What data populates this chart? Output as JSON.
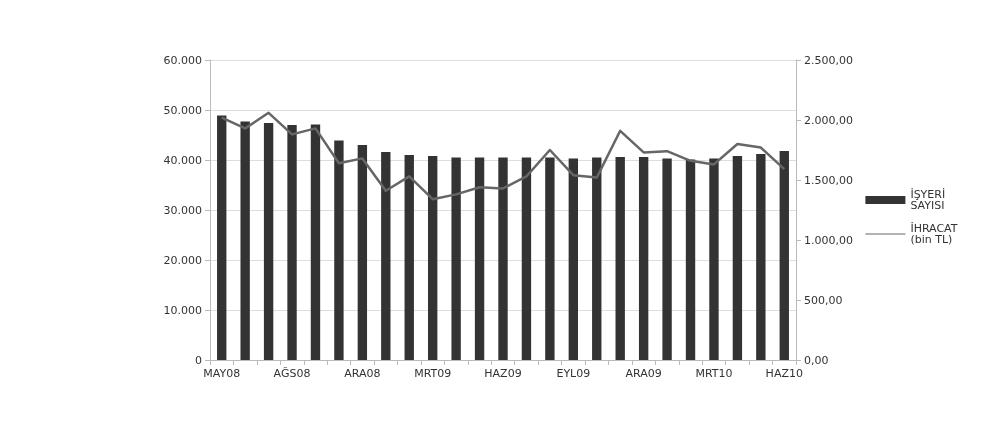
{
  "chart_data": {
    "type": "bar",
    "categories": [
      "MAY08",
      null,
      null,
      "AĞS08",
      null,
      null,
      "ARA08",
      null,
      null,
      "MRT09",
      null,
      null,
      "HAZ09",
      null,
      null,
      "EYL09",
      null,
      null,
      "ARA09",
      null,
      null,
      "MRT10",
      null,
      null,
      "HAZ10"
    ],
    "series": [
      {
        "name": "İŞYERİ SAYISI",
        "color": "#333333",
        "values": [
          48900,
          47700,
          47400,
          47000,
          47100,
          43900,
          43000,
          41600,
          41000,
          40800,
          40500,
          40500,
          40500,
          40500,
          40500,
          40300,
          40500,
          40600,
          40600,
          40300,
          40100,
          40300,
          40800,
          41200,
          41800
        ]
      },
      {
        "name": "İHRACAT (bin TL)",
        "type": "line",
        "axis": "y2",
        "color": "#666666",
        "values": [
          2020,
          1930,
          2060,
          1880,
          1930,
          1640,
          1680,
          1410,
          1530,
          1340,
          1380,
          1440,
          1430,
          1530,
          1750,
          1540,
          1520,
          1910,
          1730,
          1740,
          1660,
          1630,
          1800,
          1770,
          1590
        ]
      }
    ],
    "ylim": [
      0,
      60000
    ],
    "yticks": [
      0,
      {
        "value": 10000,
        "label": "10.000"
      },
      {
        "value": 20000,
        "label": "20.000"
      },
      {
        "value": 30000,
        "label": "30.000"
      },
      {
        "value": 40000,
        "label": "40.000"
      },
      {
        "value": 50000,
        "label": "50.000"
      },
      {
        "value": 60000,
        "label": "60.000"
      }
    ],
    "y2lim": [
      0,
      2500
    ],
    "y2ticks": [
      {
        "value": 0,
        "label": "0,00"
      },
      {
        "value": 500,
        "label": "500,00"
      },
      {
        "value": 1000,
        "label": "1.000,00"
      },
      {
        "value": 1500,
        "label": "1.500,00"
      },
      {
        "value": 2000,
        "label": "2.000,00"
      },
      {
        "value": 2500,
        "label": "2.500,00"
      }
    ],
    "grid": "y",
    "legend": "right",
    "marker": "none",
    "line_style": "solid"
  }
}
